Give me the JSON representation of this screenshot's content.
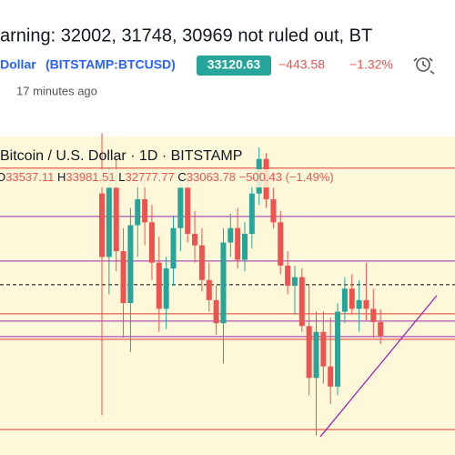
{
  "header": {
    "title": "arning: 32002, 31748, 30969 not ruled out, BT",
    "symbol_name": "Dollar",
    "symbol": "(BITSTAMP:BTCUSD)",
    "price": "33120.63",
    "change": "−443.58",
    "change_pct": "−1.32%",
    "time": "17 minutes ago"
  },
  "chart_data": {
    "type": "candlestick",
    "title": "Bitcoin / U.S. Dollar · 1D · BITSTAMP",
    "ohlc_labels": [
      "O",
      "H",
      "L",
      "C"
    ],
    "change_label": "−500.43 (−1.49%)",
    "open": [
      38000,
      35800,
      38200,
      36000,
      34200,
      36900,
      37800,
      37000,
      35600,
      34000,
      35400,
      36800,
      38200,
      36600,
      36200,
      35000,
      34300,
      33500,
      36300,
      36800,
      35700,
      36600,
      38000,
      39200,
      37800,
      37000,
      35500,
      34800,
      35100,
      33400,
      31600,
      33200,
      32000,
      31300,
      33900,
      34700,
      34000,
      34300,
      34000,
      33537.11
    ],
    "high": [
      40100,
      38900,
      39200,
      36800,
      37500,
      38300,
      38600,
      37600,
      36500,
      35800,
      37200,
      38500,
      38700,
      37400,
      36800,
      35600,
      34800,
      36800,
      37300,
      37500,
      37000,
      38300,
      39600,
      39400,
      38200,
      37400,
      36000,
      35500,
      35400,
      34800,
      33900,
      33900,
      33700,
      34200,
      35100,
      35200,
      35000,
      35600,
      34700,
      33981.51
    ],
    "low": [
      30300,
      34500,
      35300,
      33000,
      32500,
      35800,
      36200,
      35000,
      33200,
      33300,
      34800,
      36000,
      36300,
      35600,
      34600,
      33900,
      33100,
      32100,
      35800,
      35400,
      35300,
      36100,
      37600,
      37500,
      36800,
      35200,
      34500,
      33800,
      33200,
      31000,
      29600,
      31400,
      30700,
      31000,
      33500,
      33800,
      33200,
      33600,
      33000,
      32777.77
    ],
    "close": [
      35800,
      38200,
      36000,
      34200,
      36900,
      37800,
      37000,
      35600,
      34000,
      35400,
      36800,
      38200,
      36600,
      36200,
      35000,
      34300,
      33500,
      36300,
      36800,
      35700,
      36600,
      38000,
      39200,
      37800,
      37000,
      35500,
      34800,
      35100,
      33400,
      31600,
      33200,
      32000,
      31300,
      33900,
      34700,
      34000,
      34300,
      34000,
      33540,
      33063.78
    ],
    "ylim": [
      29400,
      40200
    ],
    "up_color": "#26a69a",
    "down_color": "#ef5350",
    "levels": [
      {
        "value": 38880,
        "color": "#e53935",
        "dash": false
      },
      {
        "value": 37205,
        "color": "#9c27b0",
        "dash": false
      },
      {
        "value": 35657,
        "color": "#9c27b0",
        "dash": false
      },
      {
        "value": 34835,
        "color": "#000000",
        "dash": true
      },
      {
        "value": 33824,
        "color": "#e53935",
        "dash": false
      },
      {
        "value": 33571,
        "color": "#9c27b0",
        "dash": false
      },
      {
        "value": 33034,
        "color": "#9c27b0",
        "dash": false
      },
      {
        "value": 32940,
        "color": "#e53935",
        "dash": false
      },
      {
        "value": 29811,
        "color": "#e53935",
        "dash": false
      }
    ],
    "trendline": {
      "values": [
        29560,
        34460
      ],
      "color": "#9c27b0"
    }
  }
}
